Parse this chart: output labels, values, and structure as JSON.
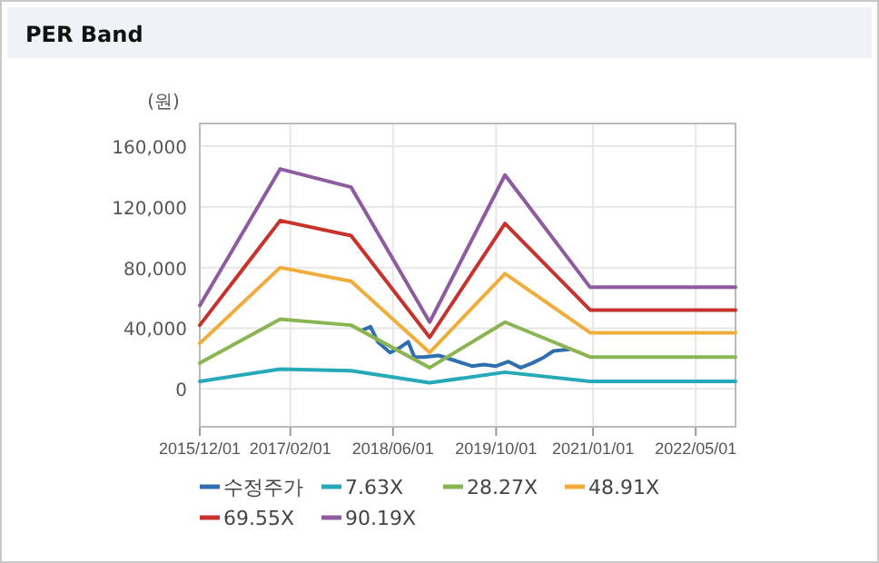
{
  "chart_data": {
    "type": "line",
    "title": "PER Band",
    "ylabel": "(원)",
    "xlim": [
      "2015-12-01",
      "2022-11-05"
    ],
    "xticks": [
      {
        "value": "2015-12-01",
        "label": "2015/12/01"
      },
      {
        "value": "2017-02-01",
        "label": "2017/02/01"
      },
      {
        "value": "2018-06-01",
        "label": "2018/06/01"
      },
      {
        "value": "2019-10-01",
        "label": "2019/10/01"
      },
      {
        "value": "2021-01-01",
        "label": "2021/01/01"
      },
      {
        "value": "2022-05-01",
        "label": "2022/05/01"
      }
    ],
    "ylim": [
      -25000,
      175000
    ],
    "yticks": [
      {
        "value": 0,
        "label": "0"
      },
      {
        "value": 40000,
        "label": "40,000"
      },
      {
        "value": 80000,
        "label": "80,000"
      },
      {
        "value": 120000,
        "label": "120,000"
      },
      {
        "value": 160000,
        "label": "160,000"
      }
    ],
    "grid": true,
    "legend": "bottom",
    "series": [
      {
        "name": "수정주가",
        "color": "#2f6fb0",
        "x": [
          "2018-01-12",
          "2018-02-15",
          "2018-03-21",
          "2018-05-18",
          "2018-07-01",
          "2018-08-12",
          "2018-09-10",
          "2018-10-22",
          "2019-01-03",
          "2019-03-12",
          "2019-06-09",
          "2019-08-04",
          "2019-10-01",
          "2019-11-28",
          "2020-01-25",
          "2020-03-20",
          "2020-05-16",
          "2020-06-28",
          "2020-09-09"
        ],
        "values": [
          39000,
          41000,
          31000,
          24000,
          27000,
          31000,
          21000,
          21000,
          22000,
          19000,
          15000,
          16000,
          15000,
          18000,
          14000,
          17000,
          21000,
          25000,
          26000
        ]
      },
      {
        "name": "7.63X",
        "color": "#26a9b8",
        "x": [
          "2015-12-01",
          "2016-12-15",
          "2017-11-15",
          "2018-11-21",
          "2019-11-12",
          "2020-12-18",
          "2022-11-05"
        ],
        "values": [
          5000,
          13000,
          12000,
          4000,
          11000,
          5000,
          5000
        ]
      },
      {
        "name": "28.27X",
        "color": "#8ab552",
        "x": [
          "2015-12-01",
          "2016-12-15",
          "2017-11-15",
          "2018-11-21",
          "2019-11-12",
          "2020-12-18",
          "2022-11-05"
        ],
        "values": [
          17000,
          46000,
          42000,
          14000,
          44000,
          21000,
          21000
        ]
      },
      {
        "name": "48.91X",
        "color": "#f0ad3c",
        "x": [
          "2015-12-01",
          "2016-12-15",
          "2017-11-15",
          "2018-11-21",
          "2019-11-12",
          "2020-12-18",
          "2022-11-05"
        ],
        "values": [
          30000,
          80000,
          71000,
          24000,
          76000,
          37000,
          37000
        ]
      },
      {
        "name": "69.55X",
        "color": "#c8322c",
        "x": [
          "2015-12-01",
          "2016-12-15",
          "2017-11-15",
          "2018-11-21",
          "2019-11-12",
          "2020-12-18",
          "2022-11-05"
        ],
        "values": [
          42000,
          111000,
          101000,
          34000,
          109000,
          52000,
          52000
        ]
      },
      {
        "name": "90.19X",
        "color": "#8e5aa0",
        "x": [
          "2015-12-01",
          "2016-12-15",
          "2017-11-15",
          "2018-11-21",
          "2019-11-12",
          "2020-12-18",
          "2022-11-05"
        ],
        "values": [
          55000,
          145000,
          133000,
          44000,
          141000,
          67000,
          67000
        ]
      }
    ]
  }
}
